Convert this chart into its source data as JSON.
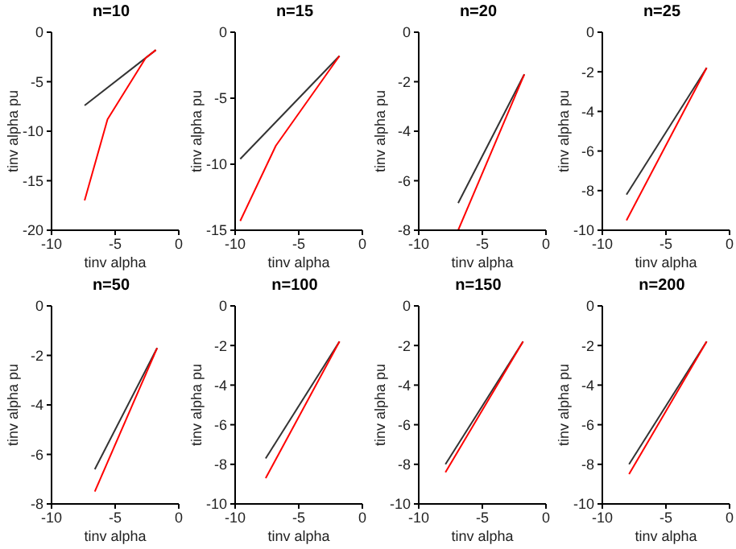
{
  "chart_data": [
    {
      "type": "line",
      "title": "n=10",
      "xlabel": "tinv alpha",
      "ylabel": "tinv alpha pu",
      "xlim": [
        -10,
        0
      ],
      "xticks": [
        -10,
        -5,
        0
      ],
      "ylim": [
        -20,
        0
      ],
      "yticks": [
        -20,
        -15,
        -10,
        -5,
        0
      ],
      "grid": false,
      "legend": false,
      "series": [
        {
          "color": "#333333",
          "x": [
            -7.4,
            -1.8
          ],
          "values": [
            -7.4,
            -1.8
          ]
        },
        {
          "color": "#ff0000",
          "x": [
            -7.4,
            -5.6,
            -2.6,
            -1.8
          ],
          "values": [
            -17,
            -8.8,
            -2.6,
            -1.8
          ]
        }
      ]
    },
    {
      "type": "line",
      "title": "n=15",
      "xlabel": "tinv alpha",
      "ylabel": "tinv alpha pu",
      "xlim": [
        -10,
        0
      ],
      "xticks": [
        -10,
        -5,
        0
      ],
      "ylim": [
        -15,
        0
      ],
      "yticks": [
        -15,
        -10,
        -5,
        0
      ],
      "grid": false,
      "legend": false,
      "series": [
        {
          "color": "#333333",
          "x": [
            -9.6,
            -1.8
          ],
          "values": [
            -9.6,
            -1.8
          ]
        },
        {
          "color": "#ff0000",
          "x": [
            -9.6,
            -6.8,
            -1.8
          ],
          "values": [
            -14.3,
            -8.6,
            -1.8
          ]
        }
      ]
    },
    {
      "type": "line",
      "title": "n=20",
      "xlabel": "tinv alpha",
      "ylabel": "tinv alpha pu",
      "xlim": [
        -10,
        0
      ],
      "xticks": [
        -10,
        -5,
        0
      ],
      "ylim": [
        -8,
        0
      ],
      "yticks": [
        -8,
        -6,
        -4,
        -2,
        0
      ],
      "grid": false,
      "legend": false,
      "series": [
        {
          "color": "#333333",
          "x": [
            -6.9,
            -1.7
          ],
          "values": [
            -6.9,
            -1.7
          ]
        },
        {
          "color": "#ff0000",
          "x": [
            -6.9,
            -1.7
          ],
          "values": [
            -8,
            -1.7
          ]
        }
      ]
    },
    {
      "type": "line",
      "title": "n=25",
      "xlabel": "tinv alpha",
      "ylabel": "tinv alpha pu",
      "xlim": [
        -10,
        0
      ],
      "xticks": [
        -10,
        -5,
        0
      ],
      "ylim": [
        -10,
        0
      ],
      "yticks": [
        -10,
        -8,
        -6,
        -4,
        -2,
        0
      ],
      "grid": false,
      "legend": false,
      "series": [
        {
          "color": "#333333",
          "x": [
            -8.1,
            -1.8
          ],
          "values": [
            -8.2,
            -1.8
          ]
        },
        {
          "color": "#ff0000",
          "x": [
            -8.1,
            -1.8
          ],
          "values": [
            -9.5,
            -1.8
          ]
        }
      ]
    },
    {
      "type": "line",
      "title": "n=50",
      "xlabel": "tinv alpha",
      "ylabel": "tinv alpha pu",
      "xlim": [
        -10,
        0
      ],
      "xticks": [
        -10,
        -5,
        0
      ],
      "ylim": [
        -8,
        0
      ],
      "yticks": [
        -8,
        -6,
        -4,
        -2,
        0
      ],
      "grid": false,
      "legend": false,
      "series": [
        {
          "color": "#333333",
          "x": [
            -6.6,
            -1.7
          ],
          "values": [
            -6.6,
            -1.7
          ]
        },
        {
          "color": "#ff0000",
          "x": [
            -6.6,
            -1.7
          ],
          "values": [
            -7.5,
            -1.7
          ]
        }
      ]
    },
    {
      "type": "line",
      "title": "n=100",
      "xlabel": "tinv alpha",
      "ylabel": "tinv alpha pu",
      "xlim": [
        -10,
        0
      ],
      "xticks": [
        -10,
        -5,
        0
      ],
      "ylim": [
        -10,
        0
      ],
      "yticks": [
        -10,
        -8,
        -6,
        -4,
        -2,
        0
      ],
      "grid": false,
      "legend": false,
      "series": [
        {
          "color": "#333333",
          "x": [
            -7.6,
            -1.8
          ],
          "values": [
            -7.7,
            -1.8
          ]
        },
        {
          "color": "#ff0000",
          "x": [
            -7.6,
            -1.8
          ],
          "values": [
            -8.7,
            -1.8
          ]
        }
      ]
    },
    {
      "type": "line",
      "title": "n=150",
      "xlabel": "tinv alpha",
      "ylabel": "tinv alpha pu",
      "xlim": [
        -10,
        0
      ],
      "xticks": [
        -10,
        -5,
        0
      ],
      "ylim": [
        -10,
        0
      ],
      "yticks": [
        -10,
        -8,
        -6,
        -4,
        -2,
        0
      ],
      "grid": false,
      "legend": false,
      "series": [
        {
          "color": "#333333",
          "x": [
            -7.9,
            -1.8
          ],
          "values": [
            -8,
            -1.8
          ]
        },
        {
          "color": "#ff0000",
          "x": [
            -7.9,
            -1.8
          ],
          "values": [
            -8.4,
            -1.8
          ]
        }
      ]
    },
    {
      "type": "line",
      "title": "n=200",
      "xlabel": "tinv alpha",
      "ylabel": "tinv alpha pu",
      "xlim": [
        -10,
        0
      ],
      "xticks": [
        -10,
        -5,
        0
      ],
      "ylim": [
        -10,
        0
      ],
      "yticks": [
        -10,
        -8,
        -6,
        -4,
        -2,
        0
      ],
      "grid": false,
      "legend": false,
      "series": [
        {
          "color": "#333333",
          "x": [
            -7.9,
            -1.8
          ],
          "values": [
            -8,
            -1.8
          ]
        },
        {
          "color": "#ff0000",
          "x": [
            -7.9,
            -1.8
          ],
          "values": [
            -8.5,
            -1.8
          ]
        }
      ]
    }
  ]
}
